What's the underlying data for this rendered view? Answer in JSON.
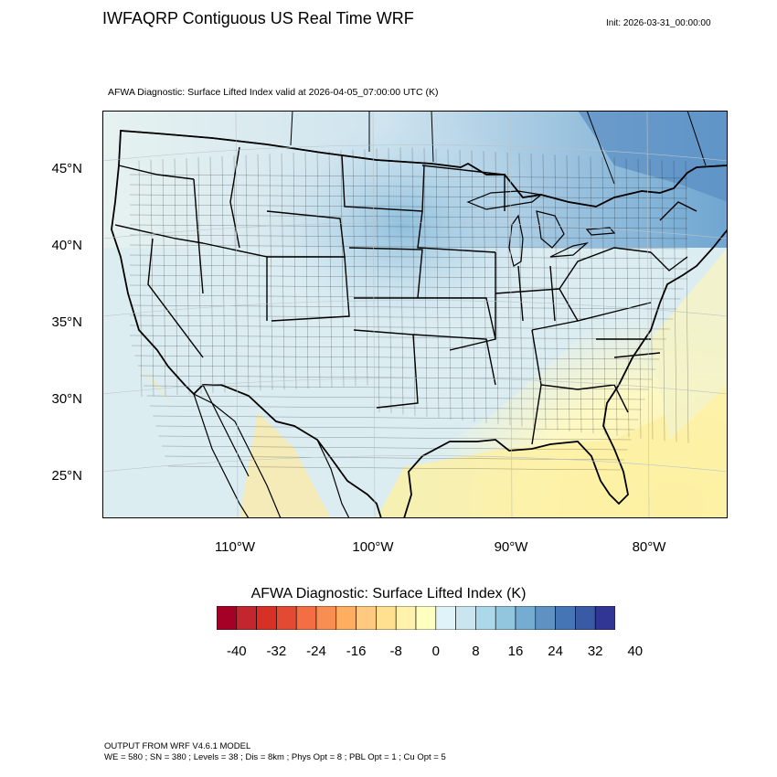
{
  "header": {
    "title": "IWFAQRP Contiguous US Real Time WRF",
    "init": "Init: 2026-03-31_00:00:00",
    "subtitle": "AFWA Diagnostic: Surface Lifted Index valid at 2026-04-05_07:00:00 UTC   (K)"
  },
  "map": {
    "projection": "lambert-conformal",
    "region": "Contiguous United States",
    "lat_labels": [
      "45°N",
      "40°N",
      "35°N",
      "30°N",
      "25°N"
    ],
    "lon_labels": [
      "110°W",
      "100°W",
      "90°W",
      "80°W"
    ],
    "shading_colors": {
      "cold_north": "#6fa6d1",
      "central": "#b7d7ea",
      "west": "#d4e8f3",
      "southeast": "#fdf8c4",
      "gulf": "#fcf2a8",
      "pacific_warm": "#fde9a0"
    },
    "boundary_color": "#000000"
  },
  "colorbar": {
    "title": "AFWA Diagnostic: Surface Lifted Index  (K)",
    "labels": [
      "-40",
      "-32",
      "-24",
      "-16",
      "-8",
      "0",
      "8",
      "16",
      "24",
      "32",
      "40"
    ],
    "colors": [
      "#a50026",
      "#c1272d",
      "#d73027",
      "#e34a33",
      "#f46d43",
      "#f98e52",
      "#fdae61",
      "#fec980",
      "#fee090",
      "#fff2ac",
      "#ffffbf",
      "#e0f3f8",
      "#c9e6f0",
      "#abd9e9",
      "#92c5de",
      "#74add1",
      "#5f92c3",
      "#4575b4",
      "#3b5aa6",
      "#313695"
    ]
  },
  "footer": {
    "line1": "OUTPUT FROM WRF V4.6.1 MODEL",
    "line2": "WE = 580 ; SN = 380 ; Levels = 38 ; Dis = 8km ; Phys Opt = 8 ; PBL Opt = 1 ; Cu Opt = 5"
  }
}
